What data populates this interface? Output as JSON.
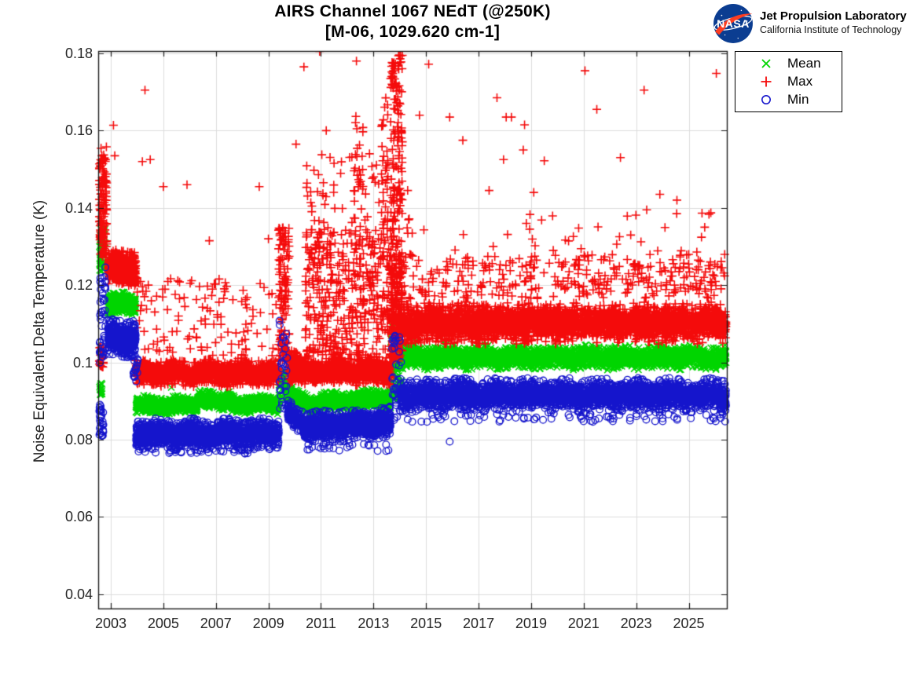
{
  "header": {
    "title_line1": "AIRS Channel 1067 NEdT (@250K)",
    "title_line2": "[M-06, 1029.620 cm-1]",
    "branding": {
      "logo_text": "NASA",
      "org_name": "Jet Propulsion Laboratory",
      "org_sub": "California Institute of Technology",
      "logo_blue": "#0b3d91",
      "logo_red": "#fc3d21"
    }
  },
  "chart_data": {
    "type": "scatter",
    "title": "AIRS Channel 1067 NEdT (@250K) [M-06, 1029.620 cm-1]",
    "xlabel": "",
    "ylabel": "Noise Equivalent Delta Temperature (K)",
    "xlim": [
      2002.52,
      2026.45
    ],
    "ylim": [
      0.0363,
      0.1806
    ],
    "grid": true,
    "grid_color": "#dcdcdc",
    "axis_color": "#1a1a1a",
    "tick_label_color": "#262626",
    "legend_position": "outside-top-right",
    "xticks": {
      "values": [
        2003,
        2005,
        2007,
        2009,
        2011,
        2013,
        2015,
        2017,
        2019,
        2021,
        2023,
        2025
      ],
      "labels": [
        "2003",
        "2005",
        "2007",
        "2009",
        "2011",
        "2013",
        "2015",
        "2017",
        "2019",
        "2021",
        "2023",
        "2025"
      ]
    },
    "yticks": {
      "values": [
        0.04,
        0.06,
        0.08,
        0.1,
        0.12,
        0.14,
        0.16,
        0.18
      ],
      "labels": [
        "0.04",
        "0.06",
        "0.08",
        "0.1",
        "0.12",
        "0.14",
        "0.16",
        "0.18"
      ]
    },
    "series": [
      {
        "name": "Mean",
        "marker": "x",
        "color": "#00d500",
        "bands": [
          {
            "x0": 2002.56,
            "x1": 2002.8,
            "ymin": 0.1235,
            "ymax": 0.135,
            "n": 60
          },
          {
            "x0": 2002.56,
            "x1": 2002.68,
            "ymin": 0.0915,
            "ymax": 0.095,
            "n": 18
          },
          {
            "x0": 2002.9,
            "x1": 2003.95,
            "y": 0.1152,
            "sd": 0.0011,
            "n": 620
          },
          {
            "x0": 2003.95,
            "x1": 2006.3,
            "y": 0.0889,
            "sd": 0.0009,
            "n": 820
          },
          {
            "x0": 2006.3,
            "x1": 2007.6,
            "y": 0.0902,
            "sd": 0.0009,
            "n": 460
          },
          {
            "x0": 2007.6,
            "x1": 2009.4,
            "y": 0.0892,
            "sd": 0.0009,
            "n": 620
          },
          {
            "x0": 2009.38,
            "x1": 2009.75,
            "ymin": 0.09,
            "ymax": 0.0978,
            "n": 60
          },
          {
            "x0": 2009.75,
            "x1": 2010.4,
            "y0": 0.0925,
            "y1": 0.0893,
            "sd": 0.0009,
            "n": 220
          },
          {
            "x0": 2010.4,
            "x1": 2013.65,
            "y0": 0.0893,
            "y1": 0.0908,
            "sd": 0.001,
            "n": 1150
          },
          {
            "x0": 2013.65,
            "x1": 2014.1,
            "ymin": 0.09,
            "ymax": 0.11,
            "n": 130
          },
          {
            "x0": 2014.1,
            "x1": 2026.42,
            "y": 0.1013,
            "sd": 0.0012,
            "n": 3400
          }
        ],
        "outliers": [
          [
            2002.62,
            0.1345
          ],
          [
            2005.3,
            0.0935
          ],
          [
            2009.0,
            0.0952
          ],
          [
            2013.0,
            0.0928
          ],
          [
            2014.6,
            0.1055
          ]
        ]
      },
      {
        "name": "Max",
        "marker": "+",
        "color": "#f40b0b",
        "bands": [
          {
            "x0": 2002.56,
            "x1": 2002.85,
            "ymin": 0.127,
            "ymax": 0.156,
            "n": 140
          },
          {
            "x0": 2002.56,
            "x1": 2002.72,
            "ymin": 0.098,
            "ymax": 0.104,
            "n": 25
          },
          {
            "x0": 2002.9,
            "x1": 2003.95,
            "y": 0.1245,
            "sd": 0.0018,
            "n": 700
          },
          {
            "x0": 2003.95,
            "x1": 2009.4,
            "y": 0.0972,
            "sd": 0.0013,
            "n": 1700
          },
          {
            "x0": 2003.95,
            "x1": 2009.4,
            "ymin": 0.1,
            "ymax": 0.122,
            "n": 130
          },
          {
            "x0": 2009.38,
            "x1": 2009.8,
            "ymin": 0.1,
            "ymax": 0.135,
            "n": 130
          },
          {
            "x0": 2009.8,
            "x1": 2010.4,
            "y0": 0.1005,
            "y1": 0.098,
            "sd": 0.0015,
            "n": 200
          },
          {
            "x0": 2009.8,
            "x1": 2013.65,
            "y": 0.0978,
            "sd": 0.0014,
            "n": 1300
          },
          {
            "x0": 2010.4,
            "x1": 2013.65,
            "ymin": 0.101,
            "ymax": 0.135,
            "n": 450
          },
          {
            "x0": 2010.4,
            "x1": 2013.65,
            "ymin": 0.135,
            "ymax": 0.155,
            "n": 55
          },
          {
            "x0": 2012.25,
            "x1": 2012.6,
            "ymin": 0.13,
            "ymax": 0.167,
            "n": 25
          },
          {
            "x0": 2013.3,
            "x1": 2013.55,
            "ymin": 0.13,
            "ymax": 0.172,
            "n": 30
          },
          {
            "x0": 2013.65,
            "x1": 2014.1,
            "ymin": 0.101,
            "ymax": 0.18,
            "n": 230
          },
          {
            "x0": 2013.65,
            "x1": 2014.1,
            "ymin": 0.1,
            "ymax": 0.125,
            "n": 150
          },
          {
            "x0": 2014.1,
            "x1": 2026.42,
            "y": 0.1102,
            "sd": 0.0021,
            "n": 3400
          },
          {
            "x0": 2014.1,
            "x1": 2026.42,
            "ymin": 0.1165,
            "ymax": 0.128,
            "n": 330
          },
          {
            "x0": 2014.1,
            "x1": 2026.42,
            "ymin": 0.128,
            "ymax": 0.14,
            "n": 40
          }
        ],
        "outliers": [
          [
            2003.1,
            0.1614
          ],
          [
            2002.8,
            0.1525
          ],
          [
            2003.15,
            0.1535
          ],
          [
            2004.3,
            0.1705
          ],
          [
            2004.2,
            0.152
          ],
          [
            2004.5,
            0.1525
          ],
          [
            2005.0,
            0.1455
          ],
          [
            2005.9,
            0.146
          ],
          [
            2006.75,
            0.1315
          ],
          [
            2008.65,
            0.1455
          ],
          [
            2009.0,
            0.132
          ],
          [
            2010.05,
            0.1565
          ],
          [
            2010.35,
            0.1765
          ],
          [
            2010.95,
            0.1805
          ],
          [
            2011.2,
            0.16
          ],
          [
            2012.35,
            0.178
          ],
          [
            2014.3,
            0.1445
          ],
          [
            2014.75,
            0.164
          ],
          [
            2015.1,
            0.1772
          ],
          [
            2015.9,
            0.1635
          ],
          [
            2016.4,
            0.1575
          ],
          [
            2017.4,
            0.1445
          ],
          [
            2017.7,
            0.1685
          ],
          [
            2017.95,
            0.1525
          ],
          [
            2018.05,
            0.1635
          ],
          [
            2018.25,
            0.1635
          ],
          [
            2018.7,
            0.155
          ],
          [
            2018.75,
            0.1615
          ],
          [
            2019.1,
            0.144
          ],
          [
            2019.5,
            0.1522
          ],
          [
            2021.05,
            0.1755
          ],
          [
            2021.5,
            0.1655
          ],
          [
            2022.4,
            0.153
          ],
          [
            2023.3,
            0.1705
          ],
          [
            2023.4,
            0.1395
          ],
          [
            2023.9,
            0.1435
          ],
          [
            2024.55,
            0.142
          ],
          [
            2026.05,
            0.1748
          ]
        ]
      },
      {
        "name": "Min",
        "marker": "o",
        "color": "#1515cc",
        "bands": [
          {
            "x0": 2002.56,
            "x1": 2002.8,
            "ymin": 0.098,
            "ymax": 0.1225,
            "n": 45
          },
          {
            "x0": 2002.56,
            "x1": 2002.72,
            "ymin": 0.0805,
            "ymax": 0.0895,
            "n": 30
          },
          {
            "x0": 2002.9,
            "x1": 2003.95,
            "y": 0.1063,
            "sd": 0.0019,
            "n": 520
          },
          {
            "x0": 2003.85,
            "x1": 2004.05,
            "ymin": 0.095,
            "ymax": 0.102,
            "n": 18
          },
          {
            "x0": 2003.95,
            "x1": 2009.4,
            "y": 0.0815,
            "sd": 0.0015,
            "n": 1750
          },
          {
            "x0": 2003.95,
            "x1": 2009.4,
            "ymin": 0.0762,
            "ymax": 0.0786,
            "n": 60
          },
          {
            "x0": 2009.42,
            "x1": 2009.72,
            "ymin": 0.088,
            "ymax": 0.1115,
            "n": 26
          },
          {
            "x0": 2009.72,
            "x1": 2010.4,
            "y0": 0.0875,
            "y1": 0.0832,
            "sd": 0.0013,
            "n": 220
          },
          {
            "x0": 2010.4,
            "x1": 2013.65,
            "y0": 0.083,
            "y1": 0.0845,
            "sd": 0.0016,
            "n": 1150
          },
          {
            "x0": 2010.4,
            "x1": 2013.65,
            "ymin": 0.077,
            "ymax": 0.0792,
            "n": 25
          },
          {
            "x0": 2013.7,
            "x1": 2014.05,
            "ymin": 0.085,
            "ymax": 0.107,
            "n": 40
          },
          {
            "x0": 2014.05,
            "x1": 2026.42,
            "y": 0.0915,
            "sd": 0.0017,
            "n": 3400
          },
          {
            "x0": 2014.05,
            "x1": 2026.42,
            "ymin": 0.0845,
            "ymax": 0.0868,
            "n": 80
          }
        ],
        "outliers": [
          [
            2002.6,
            0.1218
          ],
          [
            2002.79,
            0.1246
          ],
          [
            2009.42,
            0.1108
          ],
          [
            2009.5,
            0.1049
          ],
          [
            2009.56,
            0.0996
          ],
          [
            2009.62,
            0.0965
          ],
          [
            2009.68,
            0.0938
          ],
          [
            2013.9,
            0.0947
          ],
          [
            2013.97,
            0.0992
          ],
          [
            2014.0,
            0.1056
          ],
          [
            2015.9,
            0.0795
          ],
          [
            2011.1,
            0.0788
          ]
        ]
      }
    ]
  }
}
